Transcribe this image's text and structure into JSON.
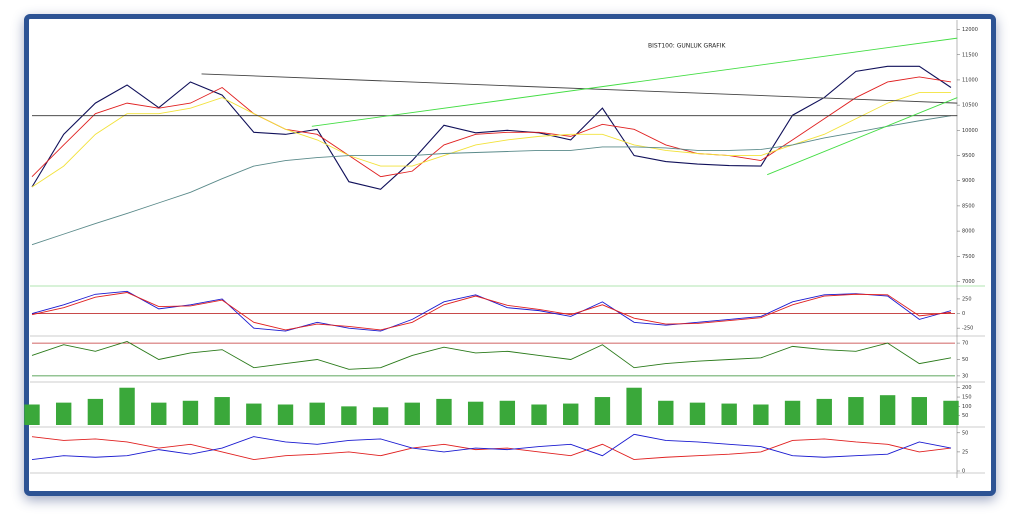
{
  "chart_data": [
    {
      "type": "line",
      "title": "BIST100: GUNLUK GRAFIK",
      "ylim": [
        6950,
        12150
      ],
      "yticks": [
        7000,
        7500,
        8000,
        8500,
        9000,
        9500,
        10000,
        10500,
        11000,
        11500,
        12000
      ],
      "series": [
        {
          "name": "price",
          "color": "#10105a",
          "values": [
            8875,
            9920,
            10540,
            10900,
            10450,
            10960,
            10700,
            9960,
            9920,
            10020,
            8980,
            8830,
            9400,
            10100,
            9950,
            10000,
            9950,
            9810,
            10440,
            9500,
            9380,
            9330,
            9300,
            9290,
            10300,
            10650,
            11170,
            11270,
            11270,
            10850
          ]
        },
        {
          "name": "ma-red",
          "color": "#e02020",
          "values": [
            9080,
            9710,
            10330,
            10540,
            10440,
            10540,
            10850,
            10330,
            10020,
            9920,
            9500,
            9080,
            9190,
            9710,
            9920,
            9960,
            9960,
            9880,
            10120,
            10020,
            9710,
            9540,
            9500,
            9400,
            9810,
            10230,
            10650,
            10960,
            11060,
            10960
          ]
        },
        {
          "name": "ma-yellow",
          "color": "#f2e23a",
          "values": [
            8875,
            9290,
            9920,
            10330,
            10330,
            10440,
            10650,
            10330,
            10020,
            9810,
            9500,
            9290,
            9290,
            9500,
            9710,
            9810,
            9880,
            9920,
            9920,
            9710,
            9600,
            9540,
            9500,
            9500,
            9710,
            9920,
            10230,
            10540,
            10750,
            10750
          ]
        },
        {
          "name": "ma-teal",
          "color": "#5a8a8a",
          "values": [
            7730,
            7940,
            8150,
            8350,
            8560,
            8770,
            9040,
            9290,
            9400,
            9460,
            9500,
            9500,
            9500,
            9540,
            9560,
            9580,
            9600,
            9600,
            9670,
            9670,
            9650,
            9600,
            9600,
            9620,
            9710,
            9850,
            9960,
            10080,
            10190,
            10290
          ]
        }
      ],
      "trendlines": [
        {
          "color": "#444444",
          "x": [
            5.35,
            29.2
          ],
          "y": [
            11120,
            10540
          ]
        },
        {
          "color": "#333333",
          "x": [
            0,
            29.2
          ],
          "y": [
            10290,
            10290
          ]
        },
        {
          "color": "#44dd44",
          "x": [
            8.83,
            29.2
          ],
          "y": [
            10080,
            11830
          ]
        },
        {
          "color": "#44dd44",
          "x": [
            23.2,
            29.2
          ],
          "y": [
            9120,
            10650
          ]
        }
      ]
    },
    {
      "type": "line",
      "ylim": [
        -350,
        420
      ],
      "yticks": [
        250,
        0,
        -250
      ],
      "reference_lines": [
        {
          "value": 0,
          "color": "#c03030"
        }
      ],
      "series": [
        {
          "name": "macd",
          "color": "#1a1ad0",
          "values": [
            0,
            150,
            330,
            380,
            80,
            150,
            250,
            -250,
            -300,
            -150,
            -250,
            -300,
            -100,
            200,
            320,
            100,
            50,
            -50,
            200,
            -150,
            -200,
            -150,
            -100,
            -50,
            200,
            320,
            340,
            300,
            -100,
            50
          ]
        },
        {
          "name": "signal",
          "color": "#e02020",
          "values": [
            -20,
            100,
            280,
            360,
            120,
            130,
            230,
            -150,
            -280,
            -180,
            -220,
            -280,
            -150,
            150,
            300,
            140,
            70,
            -20,
            150,
            -80,
            -180,
            -170,
            -120,
            -70,
            150,
            300,
            330,
            320,
            -40,
            20
          ]
        }
      ]
    },
    {
      "type": "line",
      "ylim": [
        25,
        75
      ],
      "yticks": [
        70,
        50,
        30
      ],
      "reference_lines": [
        {
          "value": 70,
          "color": "#c03030"
        },
        {
          "value": 30,
          "color": "#2a8a2a"
        }
      ],
      "series": [
        {
          "name": "rsi",
          "color": "#2a7a1a",
          "values": [
            55,
            68,
            60,
            72,
            50,
            58,
            62,
            40,
            45,
            50,
            38,
            40,
            55,
            65,
            58,
            60,
            55,
            50,
            68,
            40,
            45,
            48,
            50,
            52,
            66,
            62,
            60,
            70,
            45,
            52
          ]
        }
      ]
    },
    {
      "type": "bar",
      "ylim": [
        0,
        220
      ],
      "yticks": [
        50,
        100,
        150,
        200
      ],
      "color": "#3aa83a",
      "values": [
        110,
        120,
        140,
        200,
        120,
        130,
        150,
        115,
        110,
        120,
        100,
        95,
        120,
        140,
        125,
        130,
        110,
        115,
        150,
        200,
        130,
        120,
        115,
        110,
        130,
        140,
        150,
        160,
        150,
        130
      ]
    },
    {
      "type": "line",
      "ylim": [
        0,
        55
      ],
      "yticks": [
        50,
        25,
        0
      ],
      "series": [
        {
          "name": "plus-di",
          "color": "#e02020",
          "values": [
            45,
            40,
            42,
            38,
            30,
            35,
            25,
            15,
            20,
            22,
            25,
            20,
            30,
            35,
            28,
            30,
            25,
            20,
            35,
            15,
            18,
            20,
            22,
            25,
            40,
            42,
            38,
            35,
            25,
            30
          ]
        },
        {
          "name": "minus-di",
          "color": "#1a1ad0",
          "values": [
            15,
            20,
            18,
            20,
            28,
            22,
            30,
            45,
            38,
            35,
            40,
            42,
            30,
            25,
            30,
            28,
            32,
            35,
            20,
            48,
            40,
            38,
            35,
            32,
            20,
            18,
            20,
            22,
            38,
            30
          ]
        }
      ]
    }
  ]
}
